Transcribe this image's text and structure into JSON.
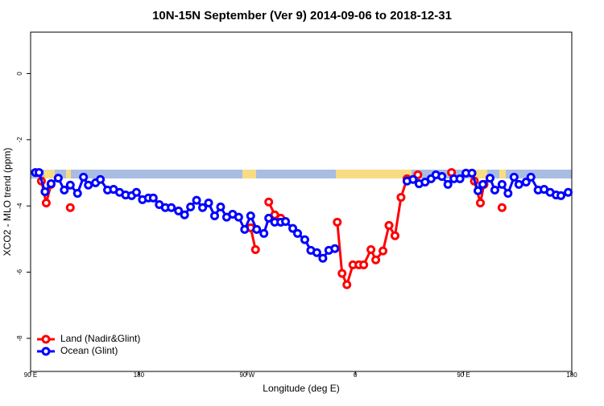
{
  "chart_data": {
    "type": "line",
    "title": "10N-15N September (Ver 9)   2014-09-06 to 2018-12-31",
    "x_label": "Longitude (deg E)",
    "y_label": "XCO2 - MLO trend (ppm)",
    "xlim": [
      90,
      540
    ],
    "ylim": [
      -9.0,
      1.25
    ],
    "xticks": [
      {
        "value": 90,
        "label": "90 E"
      },
      180,
      {
        "value": 270,
        "label": "90 W"
      },
      {
        "value": 360,
        "label": "0"
      },
      {
        "value": 450,
        "label": "90 E"
      },
      {
        "value": 540,
        "label": "180"
      }
    ],
    "yticks": [
      0,
      -2,
      -4,
      -6,
      -8
    ],
    "legend": "bottom-left",
    "series": [
      {
        "name": "Land (Nadir&Glint)",
        "color": "#ff0000",
        "x": [
          99,
          103,
          107,
          null,
          123,
          null,
          273,
          277,
          null,
          288,
          293,
          298,
          null,
          345,
          349,
          353,
          358,
          363,
          367,
          373,
          377,
          383,
          388,
          393,
          398,
          403,
          null,
          412,
          null,
          440,
          null,
          459,
          464,
          467,
          null,
          482
        ],
        "values": [
          -3.25,
          -3.91,
          -3.35,
          null,
          -4.05,
          null,
          -4.66,
          -5.32,
          null,
          -3.88,
          -4.27,
          -4.37,
          null,
          -4.49,
          -6.04,
          -6.38,
          -5.78,
          -5.78,
          -5.78,
          -5.32,
          -5.63,
          -5.36,
          -4.59,
          -4.9,
          -3.74,
          -3.18,
          null,
          -3.06,
          null,
          -2.99,
          null,
          -3.25,
          -3.91,
          -3.35,
          null,
          -4.05
        ]
      },
      {
        "name": "Ocean (Glint)",
        "color": "#0000ff",
        "x": [
          94,
          97,
          102,
          107,
          113,
          118,
          123,
          129,
          134,
          138,
          144,
          148,
          154,
          159,
          164,
          169,
          174,
          178,
          183,
          188,
          192,
          197,
          202,
          207,
          213,
          218,
          223,
          228,
          233,
          238,
          243,
          248,
          253,
          258,
          263,
          268,
          273,
          278,
          284,
          288,
          293,
          298,
          302,
          308,
          312,
          318,
          323,
          328,
          333,
          338,
          343,
          null,
          403,
          408,
          413,
          418,
          423,
          427,
          432,
          437,
          442,
          447,
          452,
          457,
          462,
          466,
          472,
          476,
          482,
          487,
          492,
          496,
          502,
          506,
          512,
          517,
          522,
          527,
          531,
          537
        ],
        "values": [
          -2.99,
          -2.99,
          -3.57,
          -3.33,
          -3.16,
          -3.52,
          -3.37,
          -3.62,
          -3.13,
          -3.37,
          -3.3,
          -3.2,
          -3.52,
          -3.5,
          -3.59,
          -3.67,
          -3.69,
          -3.59,
          -3.81,
          -3.76,
          -3.76,
          -3.96,
          -4.05,
          -4.05,
          -4.15,
          -4.27,
          -4.03,
          -3.83,
          -4.05,
          -3.91,
          -4.3,
          -4.03,
          -4.34,
          -4.25,
          -4.34,
          -4.71,
          -4.3,
          -4.71,
          -4.83,
          -4.37,
          -4.49,
          -4.49,
          -4.47,
          -4.68,
          -4.83,
          -5.02,
          -5.34,
          -5.41,
          -5.58,
          -5.34,
          -5.29,
          null,
          -3.25,
          -3.2,
          -3.33,
          -3.28,
          -3.18,
          -3.06,
          -3.11,
          -3.35,
          -3.18,
          -3.18,
          -3.01,
          -3.01,
          -3.54,
          -3.35,
          -3.16,
          -3.52,
          -3.35,
          -3.62,
          -3.13,
          -3.35,
          -3.28,
          -3.13,
          -3.52,
          -3.5,
          -3.59,
          -3.67,
          -3.69,
          -3.59
        ]
      }
    ]
  }
}
